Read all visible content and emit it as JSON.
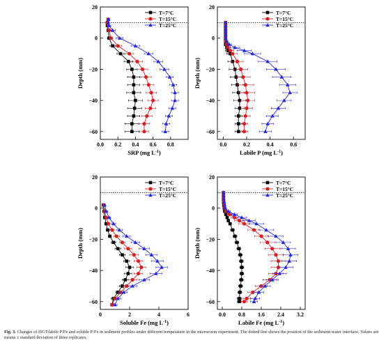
{
  "figure": {
    "caption_label": "Fig. 3.",
    "caption_text": "Changes of DGT-labile P/Fe and soluble P/Fe in sediment profiles under different temperature in the microcosm experiment. The dotted line shows the position of the sediment-water interface. Values are means ± standard deviation of three replicates."
  },
  "colors": {
    "T7": "#000000",
    "T15": "#d42020",
    "T25": "#2828d8"
  },
  "chart_data": [
    {
      "type": "line",
      "xlabel": "SRP (mg L-1)",
      "ylabel": "Depth (mm)",
      "xlim": [
        0,
        1.0
      ],
      "ylim": [
        20,
        -65
      ],
      "xticks": [
        0,
        0.2,
        0.4,
        0.6,
        0.8
      ],
      "xtick_labels": [
        "0.0",
        "0.2",
        "0.4",
        "0.6",
        "0.8"
      ],
      "yticks": [
        20,
        0,
        -20,
        -40,
        -60
      ],
      "interface_depth": 10,
      "legend": {
        "position": "top-right",
        "entries": [
          "T=7°C",
          "T=15°C",
          "T=25°C"
        ]
      },
      "series": [
        {
          "name": "T=7°C",
          "marker": "square",
          "depth": [
            12,
            10,
            8,
            5,
            0,
            -5,
            -10,
            -15,
            -20,
            -25,
            -30,
            -35,
            -40,
            -45,
            -50,
            -55,
            -60
          ],
          "values": [
            0.09,
            0.08,
            0.08,
            0.09,
            0.1,
            0.14,
            0.23,
            0.32,
            0.36,
            0.38,
            0.38,
            0.38,
            0.4,
            0.39,
            0.38,
            0.36,
            0.36
          ],
          "err": [
            0.01,
            0.01,
            0.01,
            0.01,
            0.02,
            0.03,
            0.04,
            0.05,
            0.06,
            0.07,
            0.07,
            0.08,
            0.08,
            0.08,
            0.07,
            0.08,
            0.08
          ]
        },
        {
          "name": "T=15°C",
          "marker": "circle",
          "depth": [
            12,
            10,
            8,
            5,
            0,
            -5,
            -10,
            -15,
            -20,
            -25,
            -30,
            -35,
            -40,
            -45,
            -50,
            -55,
            -60
          ],
          "values": [
            0.09,
            0.08,
            0.09,
            0.1,
            0.12,
            0.2,
            0.33,
            0.42,
            0.48,
            0.52,
            0.55,
            0.58,
            0.6,
            0.57,
            0.53,
            0.5,
            0.5
          ],
          "err": [
            0.01,
            0.01,
            0.01,
            0.02,
            0.02,
            0.04,
            0.05,
            0.06,
            0.06,
            0.06,
            0.06,
            0.06,
            0.06,
            0.06,
            0.06,
            0.06,
            0.05
          ]
        },
        {
          "name": "T=25°C",
          "marker": "triangle",
          "depth": [
            12,
            10,
            8,
            5,
            0,
            -5,
            -10,
            -15,
            -20,
            -25,
            -30,
            -35,
            -40,
            -45,
            -50,
            -55,
            -60
          ],
          "values": [
            0.09,
            0.09,
            0.1,
            0.14,
            0.22,
            0.4,
            0.55,
            0.66,
            0.73,
            0.79,
            0.83,
            0.85,
            0.85,
            0.82,
            0.78,
            0.75,
            0.74
          ],
          "err": [
            0.01,
            0.01,
            0.02,
            0.03,
            0.04,
            0.05,
            0.05,
            0.05,
            0.05,
            0.04,
            0.04,
            0.04,
            0.04,
            0.04,
            0.04,
            0.04,
            0.04
          ]
        }
      ]
    },
    {
      "type": "line",
      "xlabel": "Labile P (mg L-1)",
      "ylabel": "Depth (mm)",
      "xlim": [
        -0.05,
        0.7
      ],
      "ylim": [
        20,
        -65
      ],
      "xticks": [
        0,
        0.2,
        0.4,
        0.6
      ],
      "xtick_labels": [
        "0.0",
        "0.2",
        "0.4",
        "0.6"
      ],
      "yticks": [
        20,
        0,
        -20,
        -40,
        -60
      ],
      "interface_depth": 10,
      "legend": {
        "position": "top-right",
        "entries": [
          "T=7°C",
          "T=15°C",
          "T=25°C"
        ]
      },
      "series": [
        {
          "name": "T=7°C",
          "marker": "square",
          "depth": [
            10,
            8,
            6,
            4,
            2,
            0,
            -2,
            -4,
            -6,
            -8,
            -10,
            -15,
            -20,
            -25,
            -30,
            -35,
            -40,
            -45,
            -50,
            -55,
            -60
          ],
          "values": [
            0.02,
            0.02,
            0.02,
            0.02,
            0.02,
            0.02,
            0.02,
            0.02,
            0.03,
            0.04,
            0.06,
            0.08,
            0.1,
            0.11,
            0.12,
            0.13,
            0.14,
            0.14,
            0.13,
            0.13,
            0.13
          ],
          "err": [
            0.005,
            0.005,
            0.005,
            0.005,
            0.005,
            0.005,
            0.005,
            0.01,
            0.01,
            0.02,
            0.03,
            0.04,
            0.05,
            0.05,
            0.05,
            0.05,
            0.05,
            0.04,
            0.03,
            0.03,
            0.03
          ]
        },
        {
          "name": "T=15°C",
          "marker": "circle",
          "depth": [
            10,
            8,
            6,
            4,
            2,
            0,
            -2,
            -4,
            -6,
            -8,
            -10,
            -15,
            -20,
            -25,
            -30,
            -35,
            -40,
            -45,
            -50,
            -55,
            -60
          ],
          "values": [
            0.02,
            0.02,
            0.02,
            0.02,
            0.02,
            0.02,
            0.02,
            0.03,
            0.04,
            0.06,
            0.08,
            0.12,
            0.15,
            0.17,
            0.19,
            0.2,
            0.21,
            0.2,
            0.19,
            0.18,
            0.18
          ],
          "err": [
            0.005,
            0.005,
            0.005,
            0.005,
            0.005,
            0.005,
            0.01,
            0.01,
            0.02,
            0.03,
            0.04,
            0.05,
            0.06,
            0.06,
            0.07,
            0.07,
            0.06,
            0.05,
            0.04,
            0.03,
            0.03
          ]
        },
        {
          "name": "T=25°C",
          "marker": "triangle",
          "depth": [
            10,
            8,
            6,
            4,
            2,
            0,
            -2,
            -4,
            -6,
            -8,
            -10,
            -15,
            -20,
            -25,
            -30,
            -35,
            -40,
            -45,
            -50,
            -55,
            -60
          ],
          "values": [
            0.02,
            0.02,
            0.02,
            0.02,
            0.02,
            0.02,
            0.03,
            0.05,
            0.1,
            0.18,
            0.25,
            0.38,
            0.45,
            0.5,
            0.55,
            0.57,
            0.52,
            0.47,
            0.42,
            0.38,
            0.36
          ],
          "err": [
            0.005,
            0.005,
            0.005,
            0.005,
            0.005,
            0.005,
            0.01,
            0.02,
            0.04,
            0.06,
            0.07,
            0.08,
            0.08,
            0.08,
            0.07,
            0.06,
            0.06,
            0.06,
            0.05,
            0.05,
            0.05
          ]
        }
      ]
    },
    {
      "type": "line",
      "xlabel": "Soluble Fe (mg L-1)",
      "ylabel": "Depth (mm)",
      "xlim": [
        0,
        6
      ],
      "ylim": [
        20,
        -65
      ],
      "xticks": [
        0,
        2,
        4,
        6
      ],
      "xtick_labels": [
        "0",
        "2",
        "4",
        "6"
      ],
      "yticks": [
        20,
        0,
        -20,
        -40,
        -60
      ],
      "interface_depth": 10,
      "legend": {
        "position": "top-right",
        "entries": [
          "T=7°C",
          "T=15°C",
          "T=25°C"
        ]
      },
      "series": [
        {
          "name": "T=7°C",
          "marker": "square",
          "depth": [
            2,
            -2,
            -6,
            -10,
            -14,
            -18,
            -22,
            -26,
            -30,
            -34,
            -38,
            -42,
            -46,
            -50,
            -54,
            -58,
            -62
          ],
          "values": [
            0.2,
            0.25,
            0.3,
            0.4,
            0.5,
            0.65,
            0.9,
            1.2,
            1.5,
            1.8,
            2.0,
            1.9,
            1.7,
            1.5,
            1.2,
            0.9,
            0.8
          ],
          "err": [
            0.05,
            0.05,
            0.05,
            0.1,
            0.1,
            0.1,
            0.15,
            0.2,
            0.2,
            0.2,
            0.25,
            0.25,
            0.2,
            0.2,
            0.15,
            0.15,
            0.1
          ]
        },
        {
          "name": "T=15°C",
          "marker": "circle",
          "depth": [
            2,
            -2,
            -6,
            -10,
            -14,
            -18,
            -22,
            -26,
            -30,
            -34,
            -38,
            -42,
            -46,
            -50,
            -54,
            -58,
            -62
          ],
          "values": [
            0.25,
            0.3,
            0.4,
            0.55,
            0.8,
            1.1,
            1.5,
            1.9,
            2.3,
            2.6,
            2.8,
            2.6,
            2.2,
            1.8,
            1.4,
            1.0,
            0.8
          ],
          "err": [
            0.05,
            0.05,
            0.1,
            0.1,
            0.15,
            0.2,
            0.2,
            0.25,
            0.3,
            0.3,
            0.3,
            0.3,
            0.3,
            0.25,
            0.2,
            0.15,
            0.1
          ]
        },
        {
          "name": "T=25°C",
          "marker": "triangle",
          "depth": [
            2,
            -2,
            -6,
            -10,
            -14,
            -18,
            -22,
            -26,
            -30,
            -34,
            -38,
            -42,
            -46,
            -50,
            -54,
            -58,
            -62
          ],
          "values": [
            0.3,
            0.4,
            0.6,
            0.9,
            1.3,
            1.8,
            2.4,
            3.0,
            3.5,
            3.9,
            4.2,
            3.8,
            3.0,
            2.2,
            1.6,
            1.2,
            1.0
          ],
          "err": [
            0.05,
            0.1,
            0.1,
            0.15,
            0.2,
            0.25,
            0.3,
            0.35,
            0.4,
            0.4,
            0.4,
            0.4,
            0.35,
            0.3,
            0.25,
            0.2,
            0.15
          ]
        }
      ]
    },
    {
      "type": "line",
      "xlabel": "Labile Fe (mg L-1)",
      "ylabel": "Depth (mm)",
      "xlim": [
        -0.2,
        3.4
      ],
      "ylim": [
        20,
        -65
      ],
      "xticks": [
        0,
        0.8,
        1.6,
        2.4,
        3.2
      ],
      "xtick_labels": [
        "0.0",
        "0.8",
        "1.6",
        "2.4",
        "3.2"
      ],
      "yticks": [
        20,
        0,
        -20,
        -40,
        -60
      ],
      "interface_depth": 10,
      "legend": {
        "position": "top-right",
        "entries": [
          "T=7°C",
          "T=15°C",
          "T=25°C"
        ]
      },
      "series": [
        {
          "name": "T=7°C",
          "marker": "square",
          "depth": [
            10,
            8,
            6,
            4,
            2,
            0,
            -2,
            -4,
            -6,
            -8,
            -10,
            -14,
            -18,
            -22,
            -26,
            -30,
            -34,
            -38,
            -42,
            -46,
            -50,
            -54,
            -58,
            -60
          ],
          "values": [
            0.05,
            0.05,
            0.05,
            0.05,
            0.06,
            0.08,
            0.1,
            0.15,
            0.2,
            0.25,
            0.32,
            0.42,
            0.52,
            0.6,
            0.68,
            0.74,
            0.78,
            0.8,
            0.8,
            0.78,
            0.75,
            0.72,
            0.7,
            0.7
          ],
          "err": [
            0.01,
            0.01,
            0.01,
            0.01,
            0.02,
            0.02,
            0.03,
            0.03,
            0.04,
            0.05,
            0.06,
            0.08,
            0.08,
            0.08,
            0.08,
            0.08,
            0.08,
            0.08,
            0.08,
            0.08,
            0.08,
            0.08,
            0.08,
            0.08
          ]
        },
        {
          "name": "T=15°C",
          "marker": "circle",
          "depth": [
            10,
            8,
            6,
            4,
            2,
            0,
            -2,
            -4,
            -6,
            -8,
            -10,
            -14,
            -18,
            -22,
            -26,
            -30,
            -34,
            -38,
            -42,
            -46,
            -50,
            -54,
            -58,
            -60
          ],
          "values": [
            0.05,
            0.05,
            0.05,
            0.06,
            0.08,
            0.1,
            0.15,
            0.3,
            0.5,
            0.7,
            0.9,
            1.3,
            1.6,
            1.85,
            2.05,
            2.2,
            2.3,
            2.3,
            2.2,
            1.95,
            1.6,
            1.25,
            1.0,
            0.9
          ],
          "err": [
            0.01,
            0.01,
            0.01,
            0.02,
            0.03,
            0.04,
            0.06,
            0.1,
            0.15,
            0.2,
            0.22,
            0.25,
            0.28,
            0.3,
            0.3,
            0.3,
            0.3,
            0.3,
            0.3,
            0.28,
            0.25,
            0.2,
            0.15,
            0.12
          ]
        },
        {
          "name": "T=25°C",
          "marker": "triangle",
          "depth": [
            10,
            8,
            6,
            4,
            2,
            0,
            -2,
            -4,
            -6,
            -8,
            -10,
            -14,
            -18,
            -22,
            -26,
            -30,
            -34,
            -38,
            -42,
            -46,
            -50,
            -54,
            -58,
            -60
          ],
          "values": [
            0.05,
            0.05,
            0.06,
            0.08,
            0.1,
            0.12,
            0.25,
            0.5,
            0.8,
            1.1,
            1.4,
            1.8,
            2.2,
            2.5,
            2.7,
            2.8,
            2.75,
            2.6,
            2.35,
            2.05,
            1.75,
            1.5,
            1.35,
            1.3
          ],
          "err": [
            0.01,
            0.01,
            0.02,
            0.02,
            0.03,
            0.05,
            0.08,
            0.12,
            0.2,
            0.25,
            0.3,
            0.3,
            0.3,
            0.3,
            0.3,
            0.3,
            0.3,
            0.3,
            0.28,
            0.25,
            0.22,
            0.2,
            0.18,
            0.15
          ]
        }
      ]
    }
  ]
}
